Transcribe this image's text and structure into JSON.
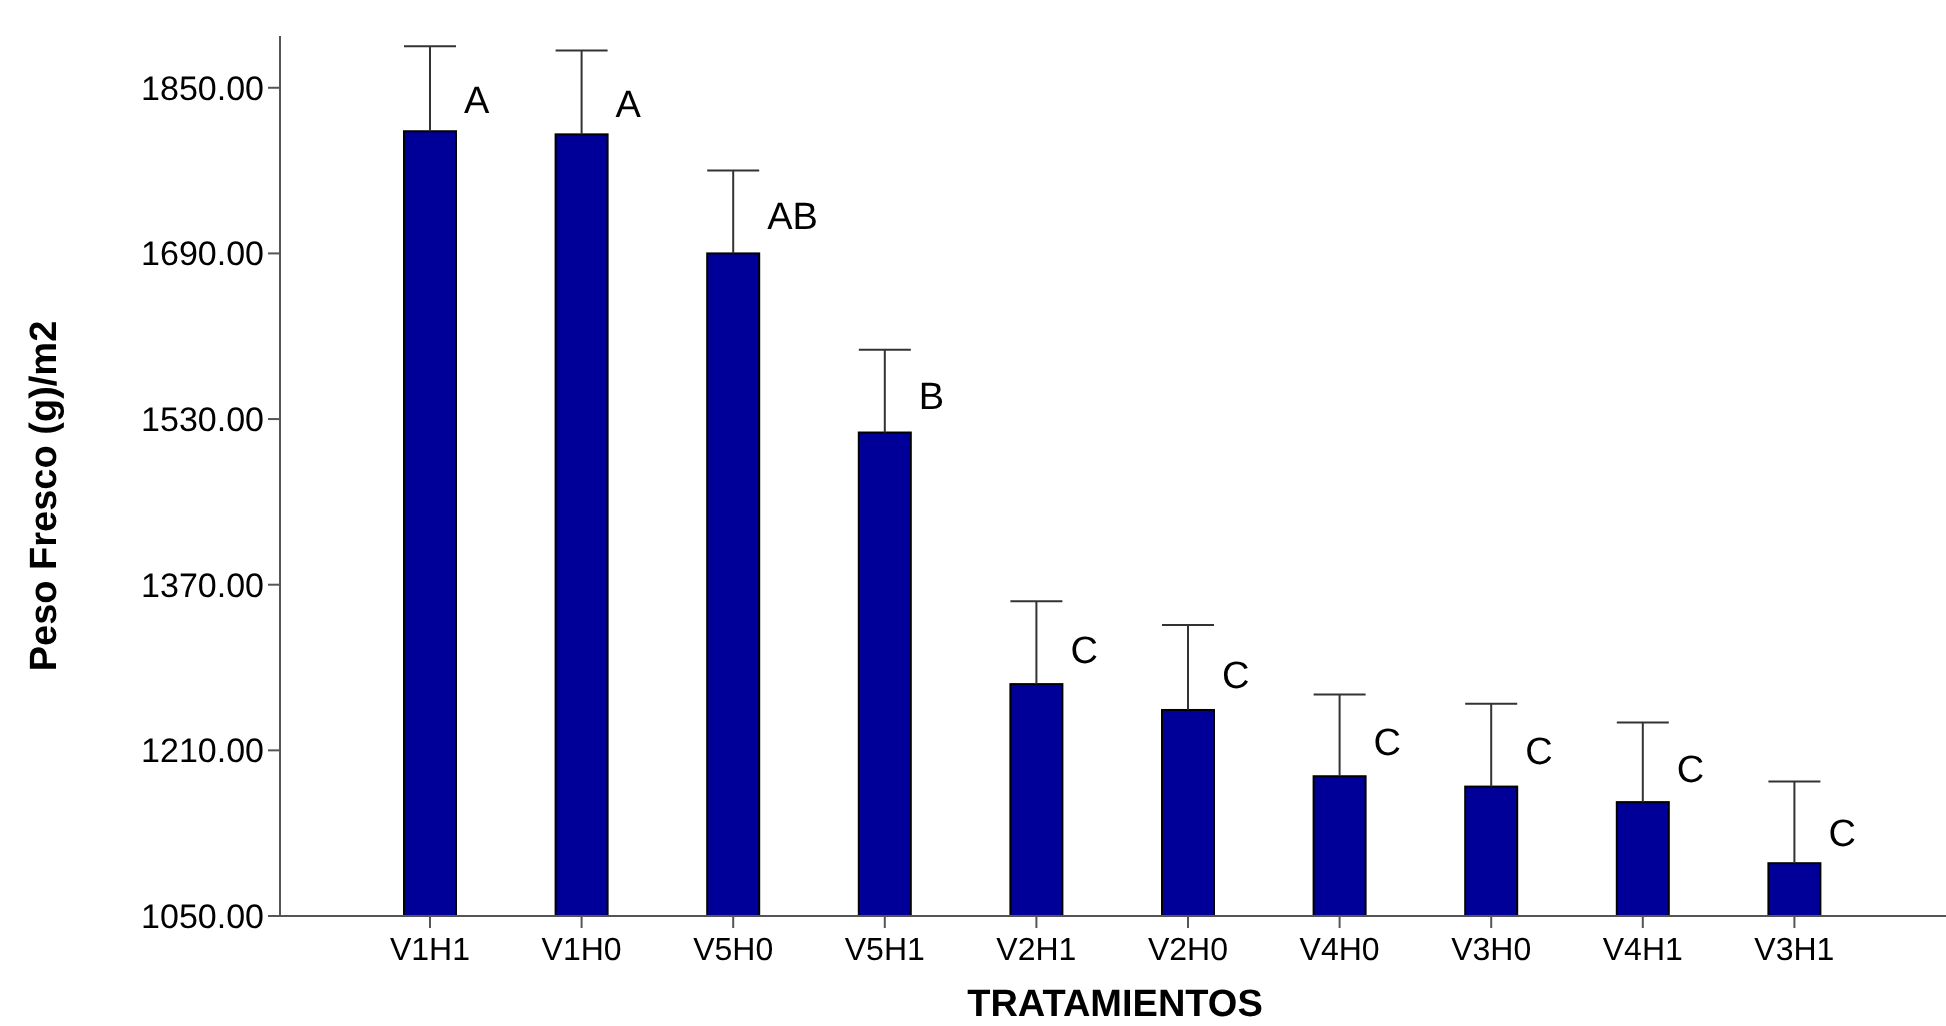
{
  "chart_data": {
    "type": "bar",
    "xlabel": "TRATAMIENTOS",
    "ylabel": "Peso Fresco (g)/m2",
    "categories": [
      "V1H1",
      "V1H0",
      "V5H0",
      "V5H1",
      "V2H1",
      "V2H0",
      "V4H0",
      "V3H0",
      "V4H1",
      "V3H1"
    ],
    "values": [
      1808,
      1805,
      1690,
      1517,
      1274,
      1249,
      1185,
      1175,
      1160,
      1101
    ],
    "errors": [
      [
        1808,
        1890
      ],
      [
        1805,
        1886
      ],
      [
        1690,
        1770
      ],
      [
        1517,
        1597
      ],
      [
        1274,
        1354
      ],
      [
        1249,
        1331
      ],
      [
        1185,
        1264
      ],
      [
        1175,
        1255
      ],
      [
        1160,
        1237
      ],
      [
        1101,
        1180
      ]
    ],
    "color": "#000099",
    "ylim": [
      1050,
      1900
    ],
    "yticks": [
      {
        "value": 1050,
        "label": "1050.00"
      },
      {
        "value": 1210,
        "label": "1210.00"
      },
      {
        "value": 1370,
        "label": "1370.00"
      },
      {
        "value": 1530,
        "label": "1530.00"
      },
      {
        "value": 1690,
        "label": "1690.00"
      },
      {
        "value": 1850,
        "label": "1850.00"
      }
    ],
    "grid": false,
    "annotations": [
      {
        "text": "A",
        "x": "V1H1",
        "y": 1838
      },
      {
        "text": "A",
        "x": "V1H0",
        "y": 1835
      },
      {
        "text": "AB",
        "x": "V5H0",
        "y": 1726
      },
      {
        "text": "B",
        "x": "V5H1",
        "y": 1553
      },
      {
        "text": "C",
        "x": "V2H1",
        "y": 1307
      },
      {
        "text": "C",
        "x": "V2H0",
        "y": 1283
      },
      {
        "text": "C",
        "x": "V4H0",
        "y": 1218
      },
      {
        "text": "C",
        "x": "V3H0",
        "y": 1210
      },
      {
        "text": "C",
        "x": "V4H1",
        "y": 1192
      },
      {
        "text": "C",
        "x": "V3H1",
        "y": 1130
      }
    ]
  }
}
